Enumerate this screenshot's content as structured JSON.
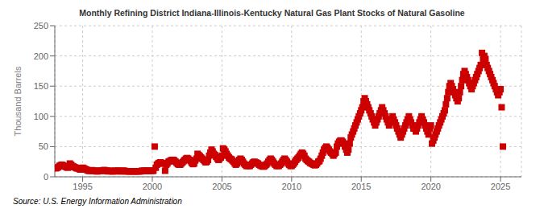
{
  "chart_data": {
    "type": "scatter",
    "title": "Monthly Refining District Indiana-Illinois-Kentucky Natural Gas Plant Stocks of Natural Gasoline",
    "ylabel": "Thousand Barrels",
    "annotations": [
      "Source: U.S. Energy Information Administration"
    ],
    "color": "#cc0000",
    "marker": "square",
    "grid": true,
    "xlim": [
      1993.0,
      2026.5
    ],
    "ylim": [
      0,
      250
    ],
    "xticks": [
      1995,
      2000,
      2005,
      2010,
      2015,
      2020,
      2025
    ],
    "yticks": [
      0,
      50,
      100,
      150,
      200,
      250
    ],
    "x": [
      1993.08,
      1993.17,
      1993.25,
      1993.33,
      1993.42,
      1993.5,
      1993.58,
      1993.67,
      1993.75,
      1993.83,
      1993.92,
      1994.0,
      1994.08,
      1994.17,
      1994.25,
      1994.33,
      1994.42,
      1994.5,
      1994.58,
      1994.67,
      1994.75,
      1994.83,
      1994.92,
      1995.0,
      1995.08,
      1995.17,
      1995.25,
      1995.33,
      1995.42,
      1995.5,
      1995.58,
      1995.67,
      1995.75,
      1995.83,
      1995.92,
      1996.0,
      1996.08,
      1996.17,
      1996.25,
      1996.33,
      1996.42,
      1996.5,
      1996.58,
      1996.67,
      1996.75,
      1996.83,
      1996.92,
      1997.0,
      1997.08,
      1997.17,
      1997.25,
      1997.33,
      1997.42,
      1997.5,
      1997.58,
      1997.67,
      1997.75,
      1997.83,
      1997.92,
      1998.0,
      1998.08,
      1998.17,
      1998.25,
      1998.33,
      1998.42,
      1998.5,
      1998.58,
      1998.67,
      1998.75,
      1998.83,
      1998.92,
      1999.0,
      1999.08,
      1999.17,
      1999.25,
      1999.33,
      1999.42,
      1999.5,
      1999.58,
      1999.67,
      1999.75,
      1999.83,
      1999.92,
      2000.0,
      2000.08,
      2000.17,
      2000.25,
      2000.33,
      2000.42,
      2000.5,
      2000.58,
      2000.67,
      2000.75,
      2000.83,
      2000.92,
      2001.0,
      2001.08,
      2001.17,
      2001.25,
      2001.33,
      2001.42,
      2001.5,
      2001.58,
      2001.67,
      2001.75,
      2001.83,
      2001.92,
      2002.0,
      2002.08,
      2002.17,
      2002.25,
      2002.33,
      2002.42,
      2002.5,
      2002.58,
      2002.67,
      2002.75,
      2002.83,
      2002.92,
      2003.0,
      2003.08,
      2003.17,
      2003.25,
      2003.33,
      2003.42,
      2003.5,
      2003.58,
      2003.67,
      2003.75,
      2003.83,
      2003.92,
      2004.0,
      2004.08,
      2004.17,
      2004.25,
      2004.33,
      2004.42,
      2004.5,
      2004.58,
      2004.67,
      2004.75,
      2004.83,
      2004.92,
      2005.0,
      2005.08,
      2005.17,
      2005.25,
      2005.33,
      2005.42,
      2005.5,
      2005.58,
      2005.67,
      2005.75,
      2005.83,
      2005.92,
      2006.0,
      2006.08,
      2006.17,
      2006.25,
      2006.33,
      2006.42,
      2006.5,
      2006.58,
      2006.67,
      2006.75,
      2006.83,
      2006.92,
      2007.0,
      2007.08,
      2007.17,
      2007.25,
      2007.33,
      2007.42,
      2007.5,
      2007.58,
      2007.67,
      2007.75,
      2007.83,
      2007.92,
      2008.0,
      2008.08,
      2008.17,
      2008.25,
      2008.33,
      2008.42,
      2008.5,
      2008.58,
      2008.67,
      2008.75,
      2008.83,
      2008.92,
      2009.0,
      2009.08,
      2009.17,
      2009.25,
      2009.33,
      2009.42,
      2009.5,
      2009.58,
      2009.67,
      2009.75,
      2009.83,
      2009.92,
      2010.0,
      2010.08,
      2010.17,
      2010.25,
      2010.33,
      2010.42,
      2010.5,
      2010.58,
      2010.67,
      2010.75,
      2010.83,
      2010.92,
      2011.0,
      2011.08,
      2011.17,
      2011.25,
      2011.33,
      2011.42,
      2011.5,
      2011.58,
      2011.67,
      2011.75,
      2011.83,
      2011.92,
      2012.0,
      2012.08,
      2012.17,
      2012.25,
      2012.33,
      2012.42,
      2012.5,
      2012.58,
      2012.67,
      2012.75,
      2012.83,
      2012.92,
      2013.0,
      2013.08,
      2013.17,
      2013.25,
      2013.33,
      2013.42,
      2013.5,
      2013.58,
      2013.67,
      2013.75,
      2013.83,
      2013.92,
      2014.0,
      2014.08,
      2014.17,
      2014.25,
      2014.33,
      2014.42,
      2014.5,
      2014.58,
      2014.67,
      2014.75,
      2014.83,
      2014.92,
      2015.0,
      2015.08,
      2015.17,
      2015.25,
      2015.33,
      2015.42,
      2015.5,
      2015.58,
      2015.67,
      2015.75,
      2015.83,
      2015.92,
      2016.0,
      2016.08,
      2016.17,
      2016.25,
      2016.33,
      2016.42,
      2016.5,
      2016.58,
      2016.67,
      2016.75,
      2016.83,
      2016.92,
      2017.0,
      2017.08,
      2017.17,
      2017.25,
      2017.33,
      2017.42,
      2017.5,
      2017.58,
      2017.67,
      2017.75,
      2017.83,
      2017.92,
      2018.0,
      2018.08,
      2018.17,
      2018.25,
      2018.33,
      2018.42,
      2018.5,
      2018.58,
      2018.67,
      2018.75,
      2018.83,
      2018.92,
      2019.0,
      2019.08,
      2019.17,
      2019.25,
      2019.33,
      2019.42,
      2019.5,
      2019.58,
      2019.67,
      2019.75,
      2019.83,
      2019.92,
      2020.0,
      2020.08,
      2020.17,
      2020.25,
      2020.33,
      2020.42,
      2020.5,
      2020.58,
      2020.67,
      2020.75,
      2020.83,
      2020.92,
      2021.0,
      2021.08,
      2021.17,
      2021.25,
      2021.33,
      2021.42,
      2021.5,
      2021.58,
      2021.67,
      2021.75,
      2021.83,
      2021.92,
      2022.0,
      2022.08,
      2022.17,
      2022.25,
      2022.33,
      2022.42,
      2022.5,
      2022.58,
      2022.67,
      2022.75,
      2022.83,
      2022.92,
      2023.0,
      2023.08,
      2023.17,
      2023.25,
      2023.33,
      2023.42,
      2023.5,
      2023.58,
      2023.67,
      2023.75,
      2023.83,
      2023.92,
      2024.0,
      2024.08,
      2024.17,
      2024.25,
      2024.33,
      2024.42,
      2024.5,
      2024.58,
      2024.67,
      2024.75,
      2024.83,
      2024.92,
      2025.0,
      2025.08,
      2025.17
    ],
    "values": [
      14,
      15,
      16,
      18,
      19,
      20,
      19,
      18,
      17,
      16,
      15,
      16,
      22,
      20,
      18,
      17,
      16,
      15,
      14,
      14,
      13,
      12,
      14,
      15,
      14,
      13,
      12,
      11,
      10,
      10,
      10,
      11,
      10,
      10,
      10,
      9,
      9,
      10,
      10,
      10,
      10,
      11,
      11,
      10,
      10,
      9,
      10,
      10,
      9,
      9,
      9,
      10,
      10,
      10,
      10,
      9,
      9,
      10,
      10,
      10,
      9,
      9,
      9,
      9,
      9,
      9,
      9,
      9,
      9,
      9,
      9,
      9,
      9,
      9,
      10,
      10,
      10,
      10,
      10,
      10,
      10,
      10,
      10,
      10,
      10,
      50,
      15,
      20,
      22,
      23,
      24,
      23,
      22,
      22,
      10,
      20,
      22,
      25,
      26,
      27,
      28,
      28,
      27,
      25,
      23,
      21,
      20,
      20,
      22,
      24,
      26,
      28,
      30,
      31,
      30,
      28,
      26,
      23,
      21,
      22,
      27,
      30,
      38,
      36,
      34,
      32,
      30,
      28,
      26,
      24,
      25,
      28,
      35,
      40,
      45,
      42,
      38,
      36,
      33,
      30,
      28,
      30,
      32,
      35,
      47,
      45,
      42,
      38,
      35,
      32,
      30,
      29,
      27,
      25,
      22,
      20,
      22,
      25,
      28,
      30,
      28,
      25,
      22,
      20,
      18,
      18,
      18,
      18,
      20,
      22,
      24,
      25,
      24,
      23,
      22,
      20,
      19,
      18,
      17,
      17,
      18,
      20,
      22,
      25,
      28,
      30,
      28,
      25,
      22,
      20,
      18,
      18,
      18,
      20,
      22,
      25,
      28,
      30,
      28,
      25,
      22,
      20,
      18,
      18,
      20,
      22,
      25,
      28,
      30,
      32,
      35,
      38,
      40,
      38,
      35,
      30,
      28,
      26,
      25,
      23,
      22,
      21,
      20,
      19,
      20,
      22,
      25,
      26,
      30,
      35,
      40,
      45,
      48,
      50,
      48,
      45,
      42,
      40,
      38,
      35,
      38,
      40,
      50,
      55,
      58,
      60,
      60,
      58,
      55,
      50,
      45,
      40,
      45,
      55,
      65,
      70,
      75,
      80,
      85,
      90,
      95,
      100,
      105,
      110,
      115,
      125,
      130,
      125,
      120,
      115,
      110,
      105,
      100,
      95,
      90,
      85,
      90,
      95,
      100,
      105,
      110,
      115,
      110,
      105,
      100,
      95,
      90,
      85,
      90,
      95,
      100,
      95,
      90,
      85,
      80,
      75,
      70,
      65,
      70,
      75,
      80,
      85,
      90,
      95,
      100,
      95,
      90,
      85,
      80,
      80,
      75,
      80,
      85,
      90,
      95,
      100,
      95,
      90,
      85,
      80,
      75,
      70,
      80,
      85,
      55,
      60,
      65,
      70,
      75,
      80,
      85,
      90,
      95,
      100,
      105,
      110,
      120,
      130,
      140,
      150,
      155,
      150,
      145,
      140,
      135,
      130,
      125,
      130,
      140,
      150,
      160,
      170,
      175,
      170,
      165,
      160,
      155,
      150,
      145,
      150,
      155,
      160,
      165,
      170,
      175,
      180,
      185,
      205,
      195,
      200,
      195,
      185,
      180,
      175,
      170,
      165,
      160,
      155,
      150,
      145,
      140,
      135,
      140,
      145,
      115,
      50
    ]
  }
}
